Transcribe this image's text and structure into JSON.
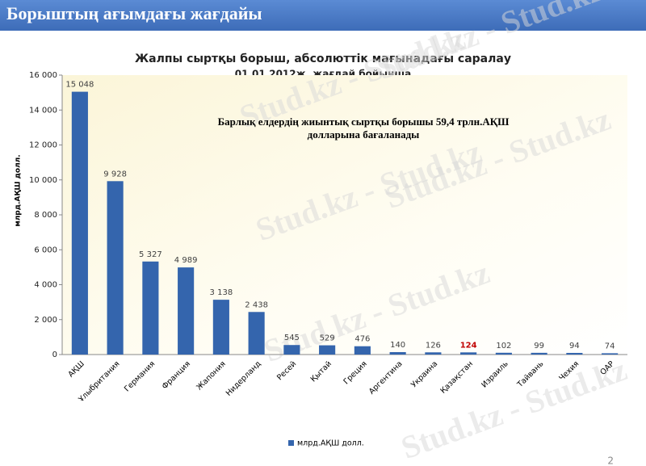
{
  "header": {
    "title": "Борыштың ағымдағы жағдайы"
  },
  "page_number": "2",
  "watermark": "Stud.kz - Stud.kz",
  "chart_data": {
    "type": "bar",
    "title": [
      "Жалпы сыртқы борыш, абсолюттік мағынадағы саралау",
      "01.01.2012ж. жағдай бойынша"
    ],
    "annotation": [
      "Барлық елдердің жиынтық сыртқы борышы 59,4 трлн.АҚШ",
      "долларына бағаланады"
    ],
    "y_label": "млрд.АҚШ долл.",
    "categories": [
      "АҚШ",
      "Ұлыбритания",
      "Германия",
      "Франция",
      "Жапония",
      "Нидерланд",
      "Ресей",
      "Қытай",
      "Греция",
      "Аргентина",
      "Украина",
      "Қазақстан",
      "Израиль",
      "Тайвань",
      "Чехия",
      "ОАР"
    ],
    "series": [
      {
        "name": "млрд.АҚШ долл.",
        "color": "#3465ad",
        "values": [
          15048,
          9928,
          5327,
          4989,
          3138,
          2438,
          545,
          529,
          476,
          140,
          126,
          124,
          102,
          99,
          94,
          74
        ],
        "value_labels": [
          "15 048",
          "9 928",
          "5 327",
          "4 989",
          "3 138",
          "2 438",
          "545",
          "529",
          "476",
          "140",
          "126",
          "124",
          "102",
          "99",
          "94",
          "74"
        ],
        "value_label_colors": [
          "#404040",
          "#404040",
          "#404040",
          "#404040",
          "#404040",
          "#404040",
          "#404040",
          "#404040",
          "#404040",
          "#404040",
          "#404040",
          "#c00000",
          "#404040",
          "#404040",
          "#404040",
          "#404040"
        ]
      }
    ],
    "ylim": [
      0,
      16000
    ],
    "yticks": [
      0,
      {
        "value": 2000,
        "label": "2 000"
      },
      {
        "value": 4000,
        "label": "4 000"
      },
      {
        "value": 6000,
        "label": "6 000"
      },
      {
        "value": 8000,
        "label": "8 000"
      },
      {
        "value": 10000,
        "label": "10 000"
      },
      {
        "value": 12000,
        "label": "12 000"
      },
      {
        "value": 14000,
        "label": "14 000"
      },
      {
        "value": 16000,
        "label": "16 000"
      }
    ],
    "legend": "bottom"
  }
}
